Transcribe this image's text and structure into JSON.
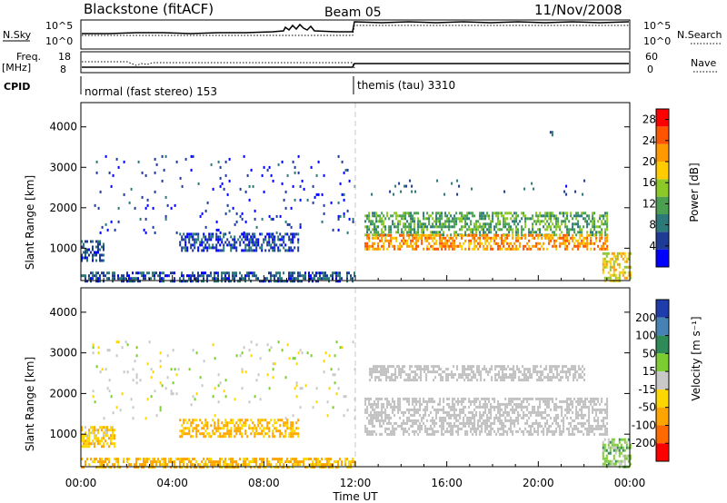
{
  "header": {
    "station": "Blackstone (fitACF)",
    "beam": "Beam 05",
    "date": "11/Nov/2008"
  },
  "panel_labels": {
    "nsky": "N.Sky",
    "nsearch": "N.Search",
    "freq": "Freq.",
    "freq_unit": "[MHz]",
    "nave": "Nave",
    "cpid": "CPID"
  },
  "cpid_modes": [
    {
      "label": "normal (fast stereo) 153",
      "start_hour": 0
    },
    {
      "label": "themis (tau) 3310",
      "start_hour": 12
    }
  ],
  "noise_axis": {
    "left_ticks": [
      "10^5",
      "10^0"
    ],
    "right_ticks": [
      "10^5",
      "10^0"
    ]
  },
  "freq_axis": {
    "left_ticks": [
      "18",
      "8"
    ],
    "right_ticks": [
      "60",
      "0"
    ]
  },
  "colors": {
    "power_scale": [
      "#0000ff",
      "#1e3c96",
      "#2d7878",
      "#4aa050",
      "#8cc828",
      "#ffcc00",
      "#ff9900",
      "#ff5500",
      "#ff0000"
    ],
    "velocity_scale": [
      "#1e3caa",
      "#4682b4",
      "#2e8b57",
      "#7ccd32",
      "#c8c8c8",
      "#ffd700",
      "#ffa500",
      "#ff6a00",
      "#ff0000"
    ],
    "ground_scatter": "#c0c0c0",
    "grid_dash": "#c8c8c8"
  },
  "chart_data": [
    {
      "type": "heatmap",
      "name": "power",
      "xlabel": "Time UT",
      "ylabel": "Slant Range [km]",
      "x_ticks": [
        "00:00",
        "04:00",
        "08:00",
        "12:00",
        "16:00",
        "20:00",
        "00:00"
      ],
      "x_range_hours": [
        0,
        24
      ],
      "y_ticks": [
        1000,
        2000,
        3000,
        4000
      ],
      "y_range_km": [
        200,
        4600
      ],
      "colorbar": {
        "label": "Power [dB]",
        "ticks": [
          4,
          8,
          12,
          16,
          20,
          24,
          28
        ],
        "range": [
          0,
          30
        ]
      },
      "regions": [
        {
          "t0": 0.0,
          "t1": 12.0,
          "r0": 200,
          "r1": 420,
          "value": 6
        },
        {
          "t0": 0.0,
          "t1": 1.0,
          "r0": 680,
          "r1": 1200,
          "value": 6
        },
        {
          "t0": 4.3,
          "t1": 9.5,
          "r0": 920,
          "r1": 1380,
          "value": 5
        },
        {
          "t0": 0.5,
          "t1": 12.0,
          "r0": 1400,
          "r1": 3300,
          "value": 4,
          "sparse": true
        },
        {
          "t0": 12.4,
          "t1": 23.0,
          "r0": 1350,
          "r1": 1900,
          "value": 12
        },
        {
          "t0": 12.4,
          "t1": 23.0,
          "r0": 1000,
          "r1": 1350,
          "value": 22
        },
        {
          "t0": 12.6,
          "t1": 22.0,
          "r0": 2300,
          "r1": 2700,
          "value": 6,
          "sparse": true
        },
        {
          "t0": 22.8,
          "t1": 24.0,
          "r0": 200,
          "r1": 900,
          "value": 18
        },
        {
          "t0": 20.5,
          "t1": 20.6,
          "r0": 3800,
          "r1": 3900,
          "value": 6
        }
      ]
    },
    {
      "type": "heatmap",
      "name": "velocity",
      "xlabel": "Time UT",
      "ylabel": "Slant Range [km]",
      "x_ticks": [
        "00:00",
        "04:00",
        "08:00",
        "12:00",
        "16:00",
        "20:00",
        "00:00"
      ],
      "x_range_hours": [
        0,
        24
      ],
      "y_ticks": [
        1000,
        2000,
        3000,
        4000
      ],
      "y_range_km": [
        200,
        4600
      ],
      "colorbar": {
        "label": "Velocity [m s⁻¹]",
        "ticks": [
          200,
          100,
          50,
          15,
          -15,
          -50,
          -100,
          -200
        ],
        "range": [
          -250,
          250
        ]
      },
      "regions": [
        {
          "t0": 0.0,
          "t1": 12.0,
          "r0": 200,
          "r1": 420,
          "value": -60
        },
        {
          "t0": 0.0,
          "t1": 1.5,
          "r0": 700,
          "r1": 1200,
          "value": -40
        },
        {
          "t0": 4.3,
          "t1": 9.5,
          "r0": 920,
          "r1": 1380,
          "value": -60
        },
        {
          "t0": 0.5,
          "t1": 12.0,
          "r0": 1400,
          "r1": 3300,
          "value": 0,
          "sparse": true
        },
        {
          "t0": 12.4,
          "t1": 23.0,
          "r0": 1000,
          "r1": 1900,
          "value": 0,
          "ground_scatter": true
        },
        {
          "t0": 12.6,
          "t1": 22.0,
          "r0": 2300,
          "r1": 2700,
          "value": 0,
          "ground_scatter": true
        },
        {
          "t0": 22.8,
          "t1": 24.0,
          "r0": 200,
          "r1": 900,
          "value": 30
        }
      ]
    }
  ]
}
